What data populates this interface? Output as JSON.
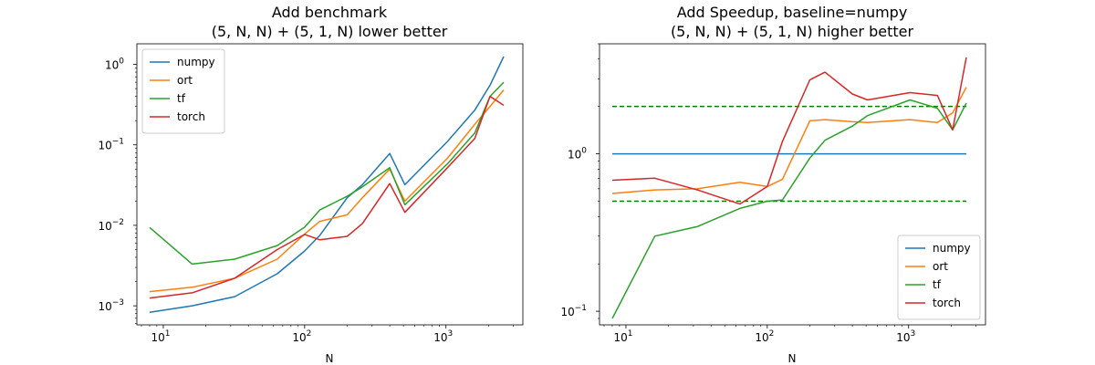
{
  "chart_data": [
    {
      "type": "line",
      "title_line1": "Add benchmark",
      "title_line2": "(5, N, N) + (5, 1, N) lower better",
      "xlabel": "N",
      "ylabel": "",
      "xscale": "log",
      "yscale": "log",
      "xlim": [
        6.5,
        3500
      ],
      "ylim": [
        0.00058,
        1.8
      ],
      "xticks": [
        10,
        100,
        1000
      ],
      "yticks": [
        0.001,
        0.01,
        0.1,
        1
      ],
      "legend": "upper left",
      "grid": false,
      "series": [
        {
          "name": "numpy",
          "color": "#1f77b4",
          "x": [
            8,
            16,
            32,
            64,
            100,
            128,
            200,
            256,
            400,
            512,
            1024,
            1600,
            2048,
            2560
          ],
          "y": [
            0.00083,
            0.001,
            0.0013,
            0.0025,
            0.0048,
            0.0075,
            0.022,
            0.032,
            0.078,
            0.032,
            0.11,
            0.27,
            0.55,
            1.25
          ]
        },
        {
          "name": "ort",
          "color": "#ff7f0e",
          "x": [
            8,
            16,
            32,
            64,
            100,
            128,
            200,
            256,
            400,
            512,
            1024,
            1600,
            2048,
            2560
          ],
          "y": [
            0.0015,
            0.0017,
            0.0022,
            0.0038,
            0.0078,
            0.0112,
            0.0135,
            0.022,
            0.05,
            0.02,
            0.068,
            0.18,
            0.3,
            0.48
          ]
        },
        {
          "name": "tf",
          "color": "#2ca02c",
          "x": [
            8,
            16,
            32,
            64,
            100,
            128,
            200,
            256,
            400,
            512,
            1024,
            1600,
            2048,
            2560
          ],
          "y": [
            0.0094,
            0.0033,
            0.0038,
            0.0056,
            0.0095,
            0.0155,
            0.023,
            0.03,
            0.052,
            0.018,
            0.058,
            0.14,
            0.4,
            0.6
          ]
        },
        {
          "name": "torch",
          "color": "#d62728",
          "x": [
            8,
            16,
            32,
            64,
            100,
            128,
            200,
            256,
            400,
            512,
            1024,
            1600,
            2048,
            2560
          ],
          "y": [
            0.00125,
            0.00145,
            0.0022,
            0.005,
            0.0077,
            0.0066,
            0.0073,
            0.0105,
            0.033,
            0.0145,
            0.052,
            0.12,
            0.4,
            0.31
          ]
        }
      ]
    },
    {
      "type": "line",
      "title_line1": "Add Speedup, baseline=numpy",
      "title_line2": "(5, N, N) + (5, 1, N) higher better",
      "xlabel": "N",
      "ylabel": "",
      "xscale": "log",
      "yscale": "log",
      "xlim": [
        6.5,
        3500
      ],
      "ylim": [
        0.082,
        5.0
      ],
      "xticks": [
        10,
        100,
        1000
      ],
      "yticks": [
        0.1,
        1
      ],
      "legend": "lower right",
      "grid": false,
      "reference_lines": [
        {
          "y": 2.0,
          "color": "#008000",
          "style": "dashed"
        },
        {
          "y": 0.5,
          "color": "#008000",
          "style": "dashed"
        }
      ],
      "series": [
        {
          "name": "numpy",
          "color": "#1f77b4",
          "x": [
            8,
            2560
          ],
          "y": [
            1.0,
            1.0
          ]
        },
        {
          "name": "ort",
          "color": "#ff7f0e",
          "x": [
            8,
            16,
            32,
            64,
            100,
            128,
            200,
            256,
            400,
            512,
            1024,
            1600,
            2048,
            2560
          ],
          "y": [
            0.56,
            0.59,
            0.6,
            0.66,
            0.62,
            0.69,
            1.62,
            1.65,
            1.6,
            1.58,
            1.65,
            1.58,
            1.82,
            2.65
          ]
        },
        {
          "name": "tf",
          "color": "#2ca02c",
          "x": [
            8,
            16,
            32,
            64,
            100,
            128,
            200,
            256,
            400,
            512,
            1024,
            1600,
            2048,
            2560
          ],
          "y": [
            0.09,
            0.3,
            0.345,
            0.45,
            0.5,
            0.51,
            0.94,
            1.22,
            1.5,
            1.75,
            2.2,
            1.95,
            1.42,
            2.1
          ]
        },
        {
          "name": "torch",
          "color": "#d62728",
          "x": [
            8,
            16,
            32,
            64,
            100,
            128,
            200,
            256,
            400,
            512,
            1024,
            1600,
            2048,
            2560
          ],
          "y": [
            0.68,
            0.7,
            0.59,
            0.48,
            0.62,
            1.2,
            2.95,
            3.3,
            2.4,
            2.2,
            2.45,
            2.35,
            1.42,
            4.1
          ]
        }
      ]
    }
  ]
}
